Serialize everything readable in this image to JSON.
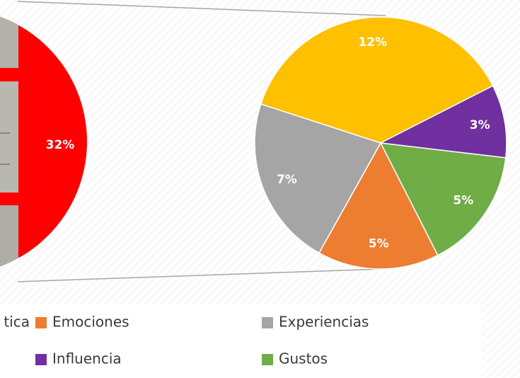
{
  "chart_data": [
    {
      "type": "pie",
      "categories": [
        "tica"
      ],
      "values": [
        32
      ],
      "value_labels": [
        "32%"
      ],
      "colors": [
        "#ff0000"
      ]
    },
    {
      "type": "pie",
      "categories": [
        null,
        "Influencia",
        "Gustos",
        "Emociones",
        "Experiencias"
      ],
      "values": [
        12,
        3,
        5,
        5,
        7
      ],
      "value_labels": [
        "12%",
        "3%",
        "5%",
        "5%",
        "7%"
      ],
      "colors": [
        "#ffc000",
        "#7030a0",
        "#70ad47",
        "#ed7d31",
        "#a5a5a5"
      ]
    }
  ]
}
